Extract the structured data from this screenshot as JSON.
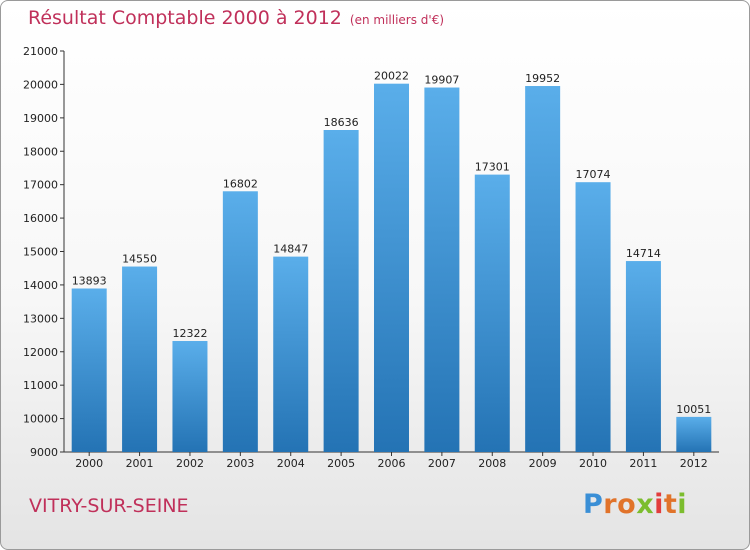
{
  "chart_data": {
    "type": "bar",
    "title": "Résultat Comptable 2000 à 2012",
    "subtitle": "(en milliers d'€)",
    "categories": [
      "2000",
      "2001",
      "2002",
      "2003",
      "2004",
      "2005",
      "2006",
      "2007",
      "2008",
      "2009",
      "2010",
      "2011",
      "2012"
    ],
    "values": [
      13893,
      14550,
      12322,
      16802,
      14847,
      18636,
      20022,
      19907,
      17301,
      19952,
      17074,
      14714,
      10051
    ],
    "ylim": [
      9000,
      21000
    ],
    "yticks": [
      9000,
      10000,
      11000,
      12000,
      13000,
      14000,
      15000,
      16000,
      17000,
      18000,
      19000,
      20000,
      21000
    ],
    "xlabel": "",
    "ylabel": "",
    "grid": false,
    "bar_color_top": "#5aaeea",
    "bar_color_bottom": "#2473b4"
  },
  "footer": {
    "city": "VITRY-SUR-SEINE",
    "brand": [
      "P",
      "r",
      "o",
      "x",
      "i",
      "t",
      "i"
    ],
    "brand_colors": [
      "#3a8fd6",
      "#e1732a",
      "#e1732a",
      "#7cbd2e",
      "#e23c3c",
      "#e1732a",
      "#7cbd2e"
    ]
  }
}
